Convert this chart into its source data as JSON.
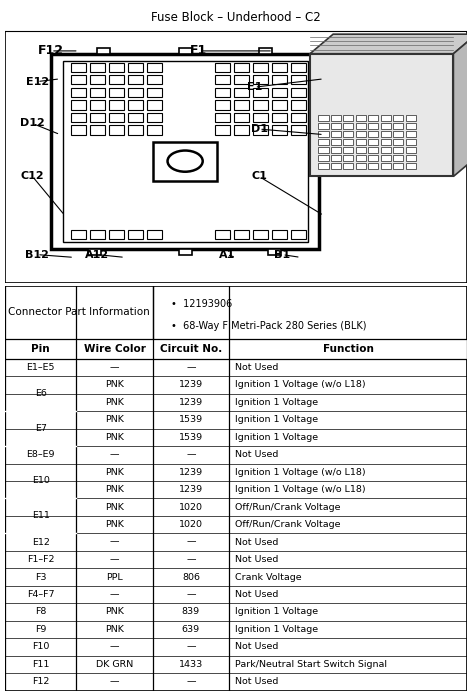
{
  "title": "Fuse Block – Underhood – C2",
  "connector_info_label": "Connector Part Information",
  "connector_bullets": [
    "12193906",
    "68-Way F Metri-Pack 280 Series (BLK)"
  ],
  "table_headers": [
    "Pin",
    "Wire Color",
    "Circuit No.",
    "Function"
  ],
  "table_rows": [
    [
      "E1–E5",
      "—",
      "—",
      "Not Used"
    ],
    [
      "E6",
      "PNK",
      "1239",
      "Ignition 1 Voltage (w/o L18)"
    ],
    [
      "",
      "PNK",
      "1239",
      "Ignition 1 Voltage"
    ],
    [
      "E7",
      "PNK",
      "1539",
      "Ignition 1 Voltage"
    ],
    [
      "",
      "PNK",
      "1539",
      "Ignition 1 Voltage"
    ],
    [
      "E8–E9",
      "—",
      "—",
      "Not Used"
    ],
    [
      "E10",
      "PNK",
      "1239",
      "Ignition 1 Voltage (w/o L18)"
    ],
    [
      "",
      "PNK",
      "1239",
      "Ignition 1 Voltage (w/o L18)"
    ],
    [
      "E11",
      "PNK",
      "1020",
      "Off/Run/Crank Voltage"
    ],
    [
      "",
      "PNK",
      "1020",
      "Off/Run/Crank Voltage"
    ],
    [
      "E12",
      "—",
      "—",
      "Not Used"
    ],
    [
      "F1–F2",
      "—",
      "—",
      "Not Used"
    ],
    [
      "F3",
      "PPL",
      "806",
      "Crank Voltage"
    ],
    [
      "F4–F7",
      "—",
      "—",
      "Not Used"
    ],
    [
      "F8",
      "PNK",
      "839",
      "Ignition 1 Voltage"
    ],
    [
      "F9",
      "PNK",
      "639",
      "Ignition 1 Voltage"
    ],
    [
      "F10",
      "—",
      "—",
      "Not Used"
    ],
    [
      "F11",
      "DK GRN",
      "1433",
      "Park/Neutral Start Switch Signal"
    ],
    [
      "F12",
      "—",
      "—",
      "Not Used"
    ]
  ],
  "bg_color": "#ffffff"
}
